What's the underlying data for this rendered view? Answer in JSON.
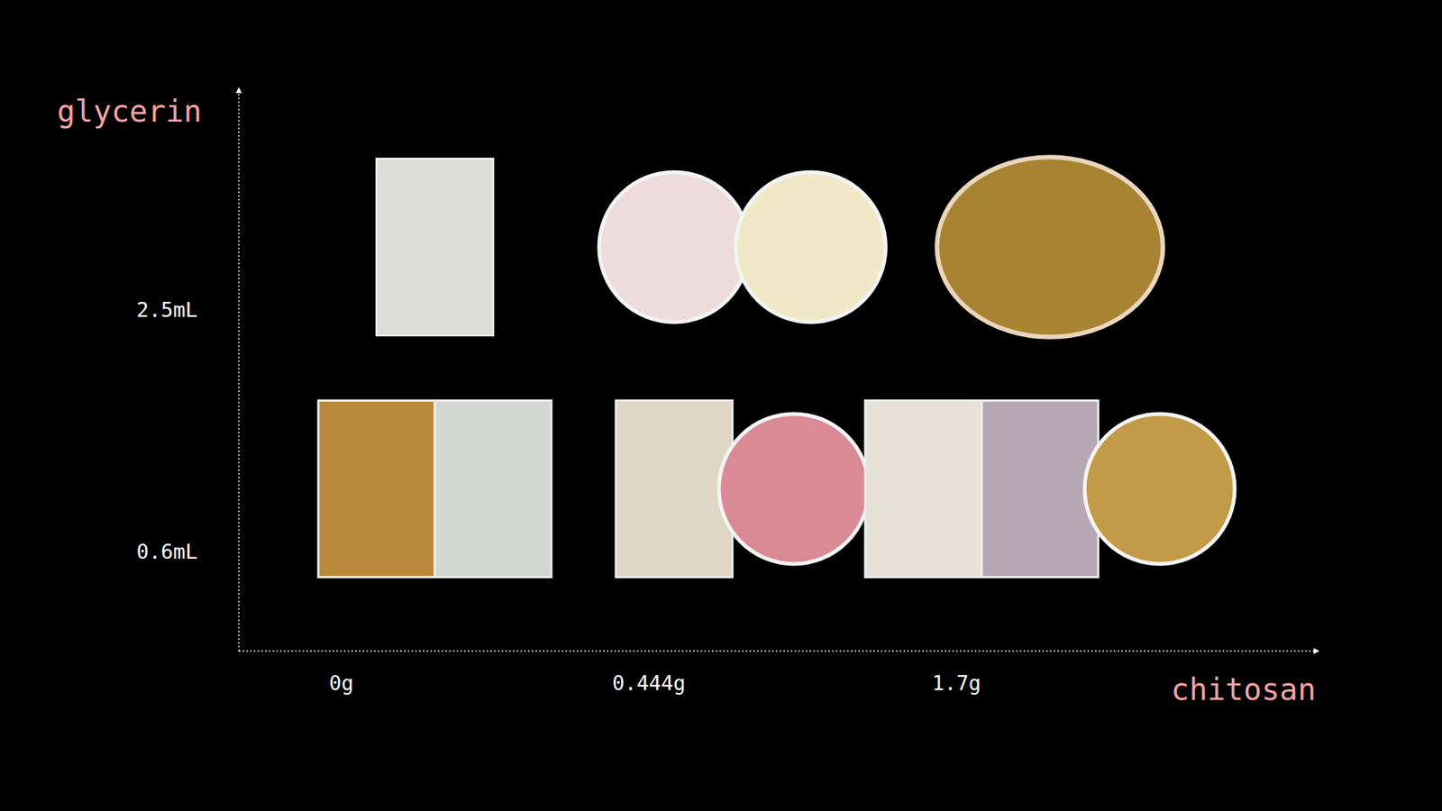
{
  "chart_data": {
    "type": "scatter",
    "x_label": "chitosan",
    "y_label": "glycerin",
    "categories": [
      "0g",
      "0.444g",
      "1.7g"
    ],
    "y_categories": [
      "0.6mL",
      "2.5mL"
    ],
    "series": [
      {
        "x": "0g",
        "y": "2.5mL",
        "color": "#dcddd6",
        "marker": "rect"
      },
      {
        "x": "0g",
        "y": "0.6mL",
        "color": "#b8893a",
        "marker": "rect"
      },
      {
        "x": "0g",
        "y": "0.6mL",
        "color": "#d4d6d2",
        "marker": "rect"
      },
      {
        "x": "0.444g",
        "y": "2.5mL",
        "color": "#eedbdc",
        "marker": "circle"
      },
      {
        "x": "0.444g",
        "y": "2.5mL",
        "color": "#f1e8c8",
        "marker": "circle"
      },
      {
        "x": "0.444g",
        "y": "0.6mL",
        "color": "#e0d6c4",
        "marker": "rect"
      },
      {
        "x": "0.444g",
        "y": "0.6mL",
        "color": "#d98a95",
        "marker": "circle"
      },
      {
        "x": "1.7g",
        "y": "2.5mL",
        "color": "#a88432",
        "marker": "ellipse"
      },
      {
        "x": "1.7g",
        "y": "0.6mL",
        "color": "#e6e2da",
        "marker": "rect"
      },
      {
        "x": "1.7g",
        "y": "0.6mL",
        "color": "#b7a7b4",
        "marker": "rect"
      },
      {
        "x": "1.7g",
        "y": "0.6mL",
        "color": "#c39a48",
        "marker": "circle"
      }
    ]
  }
}
